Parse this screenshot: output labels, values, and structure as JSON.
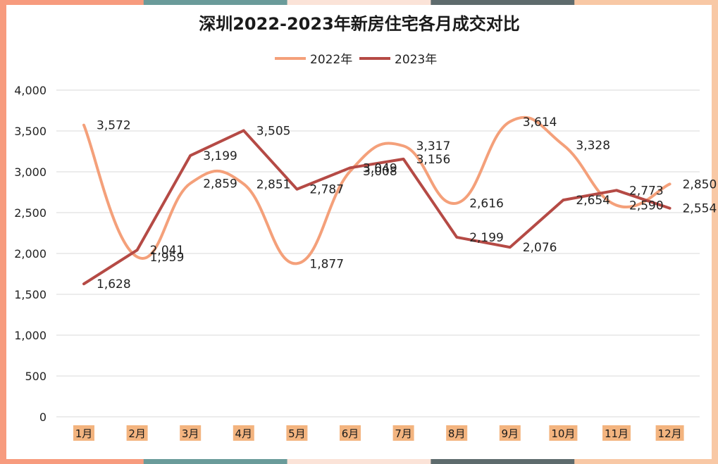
{
  "chart_data": {
    "type": "line",
    "title": "深圳2022-2023年新房住宅各月成交对比",
    "categories": [
      "1月",
      "2月",
      "3月",
      "4月",
      "5月",
      "6月",
      "7月",
      "8月",
      "9月",
      "10月",
      "11月",
      "12月"
    ],
    "series": [
      {
        "name": "2022年",
        "color": "#f4a07a",
        "smooth": true,
        "values": [
          3572,
          1959,
          2859,
          2851,
          1877,
          3008,
          3317,
          2616,
          3614,
          3328,
          2590,
          2850
        ]
      },
      {
        "name": "2023年",
        "color": "#b54a45",
        "smooth": false,
        "values": [
          1628,
          2041,
          3199,
          3505,
          2787,
          3049,
          3156,
          2199,
          2076,
          2654,
          2773,
          2554
        ]
      }
    ],
    "data_labels": {
      "2022年": [
        "3,572",
        "1,959",
        "2,859",
        "2,851",
        "1,877",
        "3,008",
        "3,317",
        "2,616",
        "3,614",
        "3,328",
        "2,590",
        "2,850"
      ],
      "2023年": [
        "1,628",
        "2,041",
        "3,199",
        "3,505",
        "2,787",
        "3,049",
        "3,156",
        "2,199",
        "2,076",
        "2,654",
        "2,773",
        "2,554"
      ]
    },
    "ytick_labels": [
      "0",
      "500",
      "1,000",
      "1,500",
      "2,000",
      "2,500",
      "3,000",
      "3,500",
      "4,000"
    ],
    "ylim": [
      0,
      4000
    ],
    "ytick_step": 500,
    "grid": true,
    "legend_position": "top-center",
    "xlabel": "",
    "ylabel": ""
  },
  "colors": {
    "frame_top": [
      "#f79b7e",
      "#6a9b9a",
      "#fbe3d8",
      "#5e6b6d",
      "#f8c8a5"
    ],
    "frame_side": "#f79b7e",
    "category_label_bg": "#f3b47f",
    "grid": "#d9d9d9",
    "text": "#222222"
  }
}
